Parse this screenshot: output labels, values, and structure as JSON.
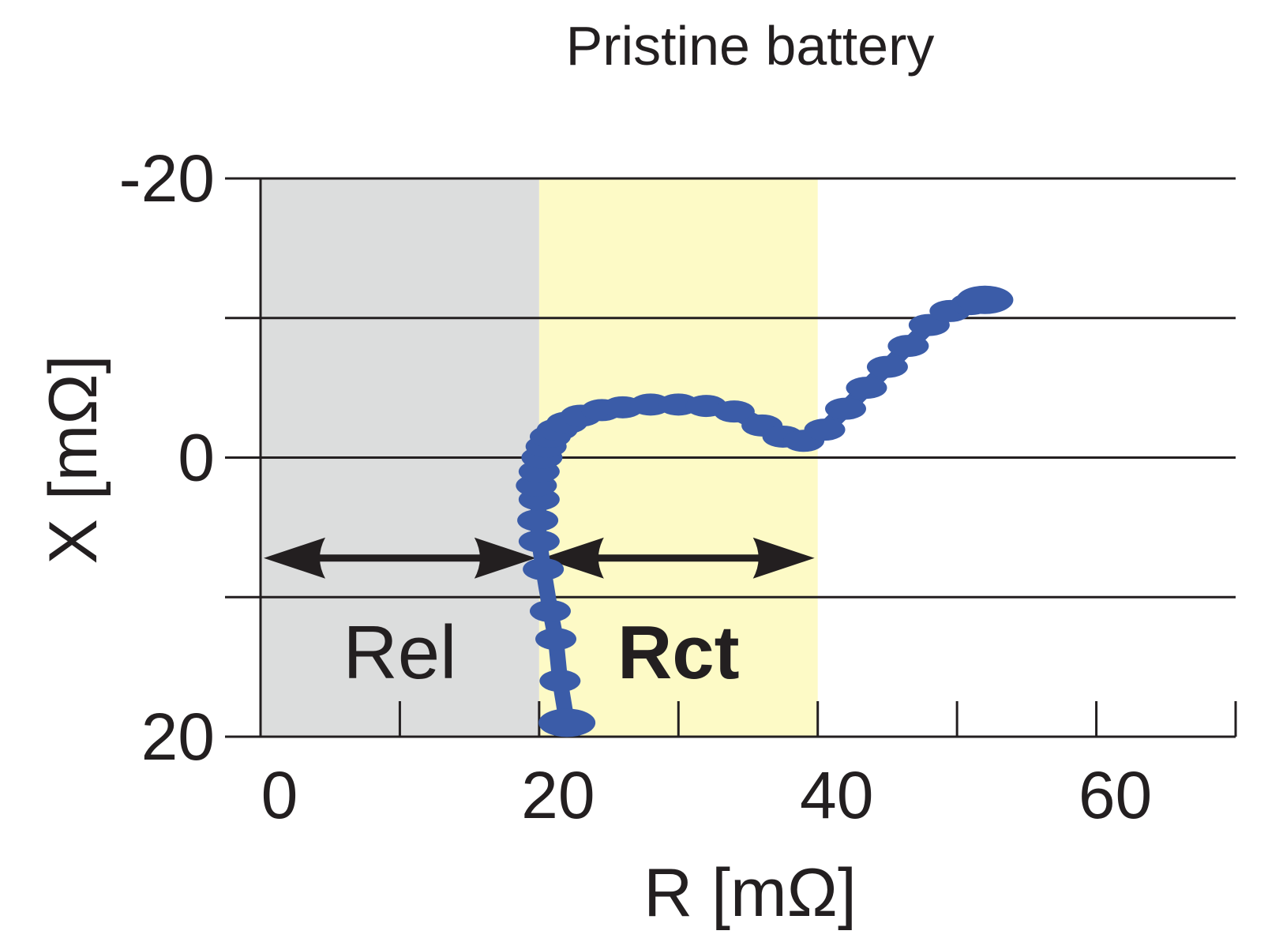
{
  "chart_data": {
    "type": "scatter",
    "title": "Pristine battery",
    "xlabel": "R [mΩ]",
    "ylabel": "X [mΩ]",
    "xlim": [
      0,
      70
    ],
    "ylim": [
      20,
      -20
    ],
    "y_inverted": true,
    "xticks": [
      "0",
      "20",
      "40",
      "60"
    ],
    "yticks": [
      "-20",
      "0",
      "20"
    ],
    "grid": "horizontal",
    "regions": [
      {
        "label": "Rel",
        "from": 0,
        "to": 20,
        "color": "#dcdddd",
        "bold": false
      },
      {
        "label": "Rct",
        "from": 20,
        "to": 40,
        "color": "#fdfac6",
        "bold": true
      }
    ],
    "series": [
      {
        "color": "#3b5ca8",
        "x": [
          22.0,
          21.5,
          21.2,
          20.8,
          20.3,
          20.0,
          19.9,
          20.0,
          19.8,
          20.0,
          20.2,
          20.5,
          20.8,
          21.3,
          22.0,
          23.0,
          24.5,
          26.0,
          28.0,
          30.0,
          32.0,
          34.0,
          36.0,
          37.5,
          39.0,
          40.5,
          42.0,
          43.5,
          45.0,
          46.5,
          48.0,
          49.5,
          51.0,
          52.0
        ],
        "y": [
          19.0,
          16.0,
          13.0,
          11.0,
          8.0,
          6.0,
          4.5,
          3.0,
          2.0,
          1.0,
          0.0,
          -0.8,
          -1.5,
          -2.0,
          -2.5,
          -3.0,
          -3.4,
          -3.6,
          -3.8,
          -3.8,
          -3.7,
          -3.3,
          -2.3,
          -1.5,
          -1.2,
          -2.0,
          -3.5,
          -5.0,
          -6.5,
          -8.0,
          -9.5,
          -10.5,
          -11.0,
          -11.3
        ]
      }
    ]
  }
}
